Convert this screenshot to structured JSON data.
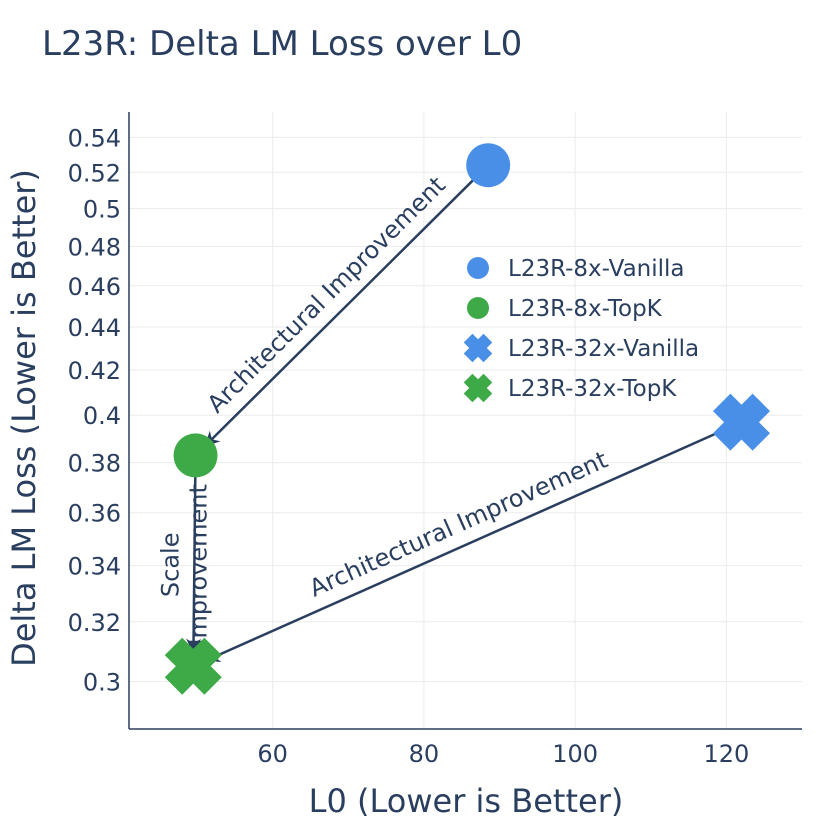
{
  "chart_data": {
    "type": "scatter",
    "title": "L23R: Delta LM Loss over L0",
    "xlabel": "L0 (Lower is Better)",
    "ylabel": "Delta LM Loss (Lower is Better)",
    "xlim": [
      41,
      130
    ],
    "ylim": [
      0.285,
      0.555
    ],
    "y_scale": "log",
    "x_ticks": [
      60,
      80,
      100,
      120
    ],
    "y_ticks": [
      0.3,
      0.32,
      0.34,
      0.36,
      0.38,
      0.4,
      0.42,
      0.44,
      0.46,
      0.48,
      0.5,
      0.52,
      0.54
    ],
    "y_tick_labels": [
      "0.3",
      "0.32",
      "0.34",
      "0.36",
      "0.38",
      "0.4",
      "0.42",
      "0.44",
      "0.46",
      "0.48",
      "0.5",
      "0.52",
      "0.54"
    ],
    "grid": true,
    "legend_position": "right",
    "series": [
      {
        "name": "L23R-8x-Vanilla",
        "marker": "circle",
        "color": "#4a8fe7",
        "x": [
          88.5
        ],
        "y": [
          0.524
        ]
      },
      {
        "name": "L23R-8x-TopK",
        "marker": "circle",
        "color": "#3daa47",
        "x": [
          49.8
        ],
        "y": [
          0.383
        ]
      },
      {
        "name": "L23R-32x-Vanilla",
        "marker": "x",
        "color": "#4a8fe7",
        "x": [
          122
        ],
        "y": [
          0.397
        ]
      },
      {
        "name": "L23R-32x-TopK",
        "marker": "x",
        "color": "#3daa47",
        "x": [
          49.5
        ],
        "y": [
          0.305
        ]
      }
    ],
    "annotations": [
      {
        "text": "Architectural Improvement",
        "from": [
          88.5,
          0.524
        ],
        "to": [
          49.8,
          0.383
        ]
      },
      {
        "text": "Architectural Improvement",
        "from": [
          122,
          0.397
        ],
        "to": [
          49.5,
          0.305
        ]
      },
      {
        "text": "Scale Improvement",
        "lines": [
          "Scale",
          "Improvement"
        ],
        "from": [
          49.8,
          0.383
        ],
        "to": [
          49.5,
          0.305
        ]
      }
    ]
  }
}
